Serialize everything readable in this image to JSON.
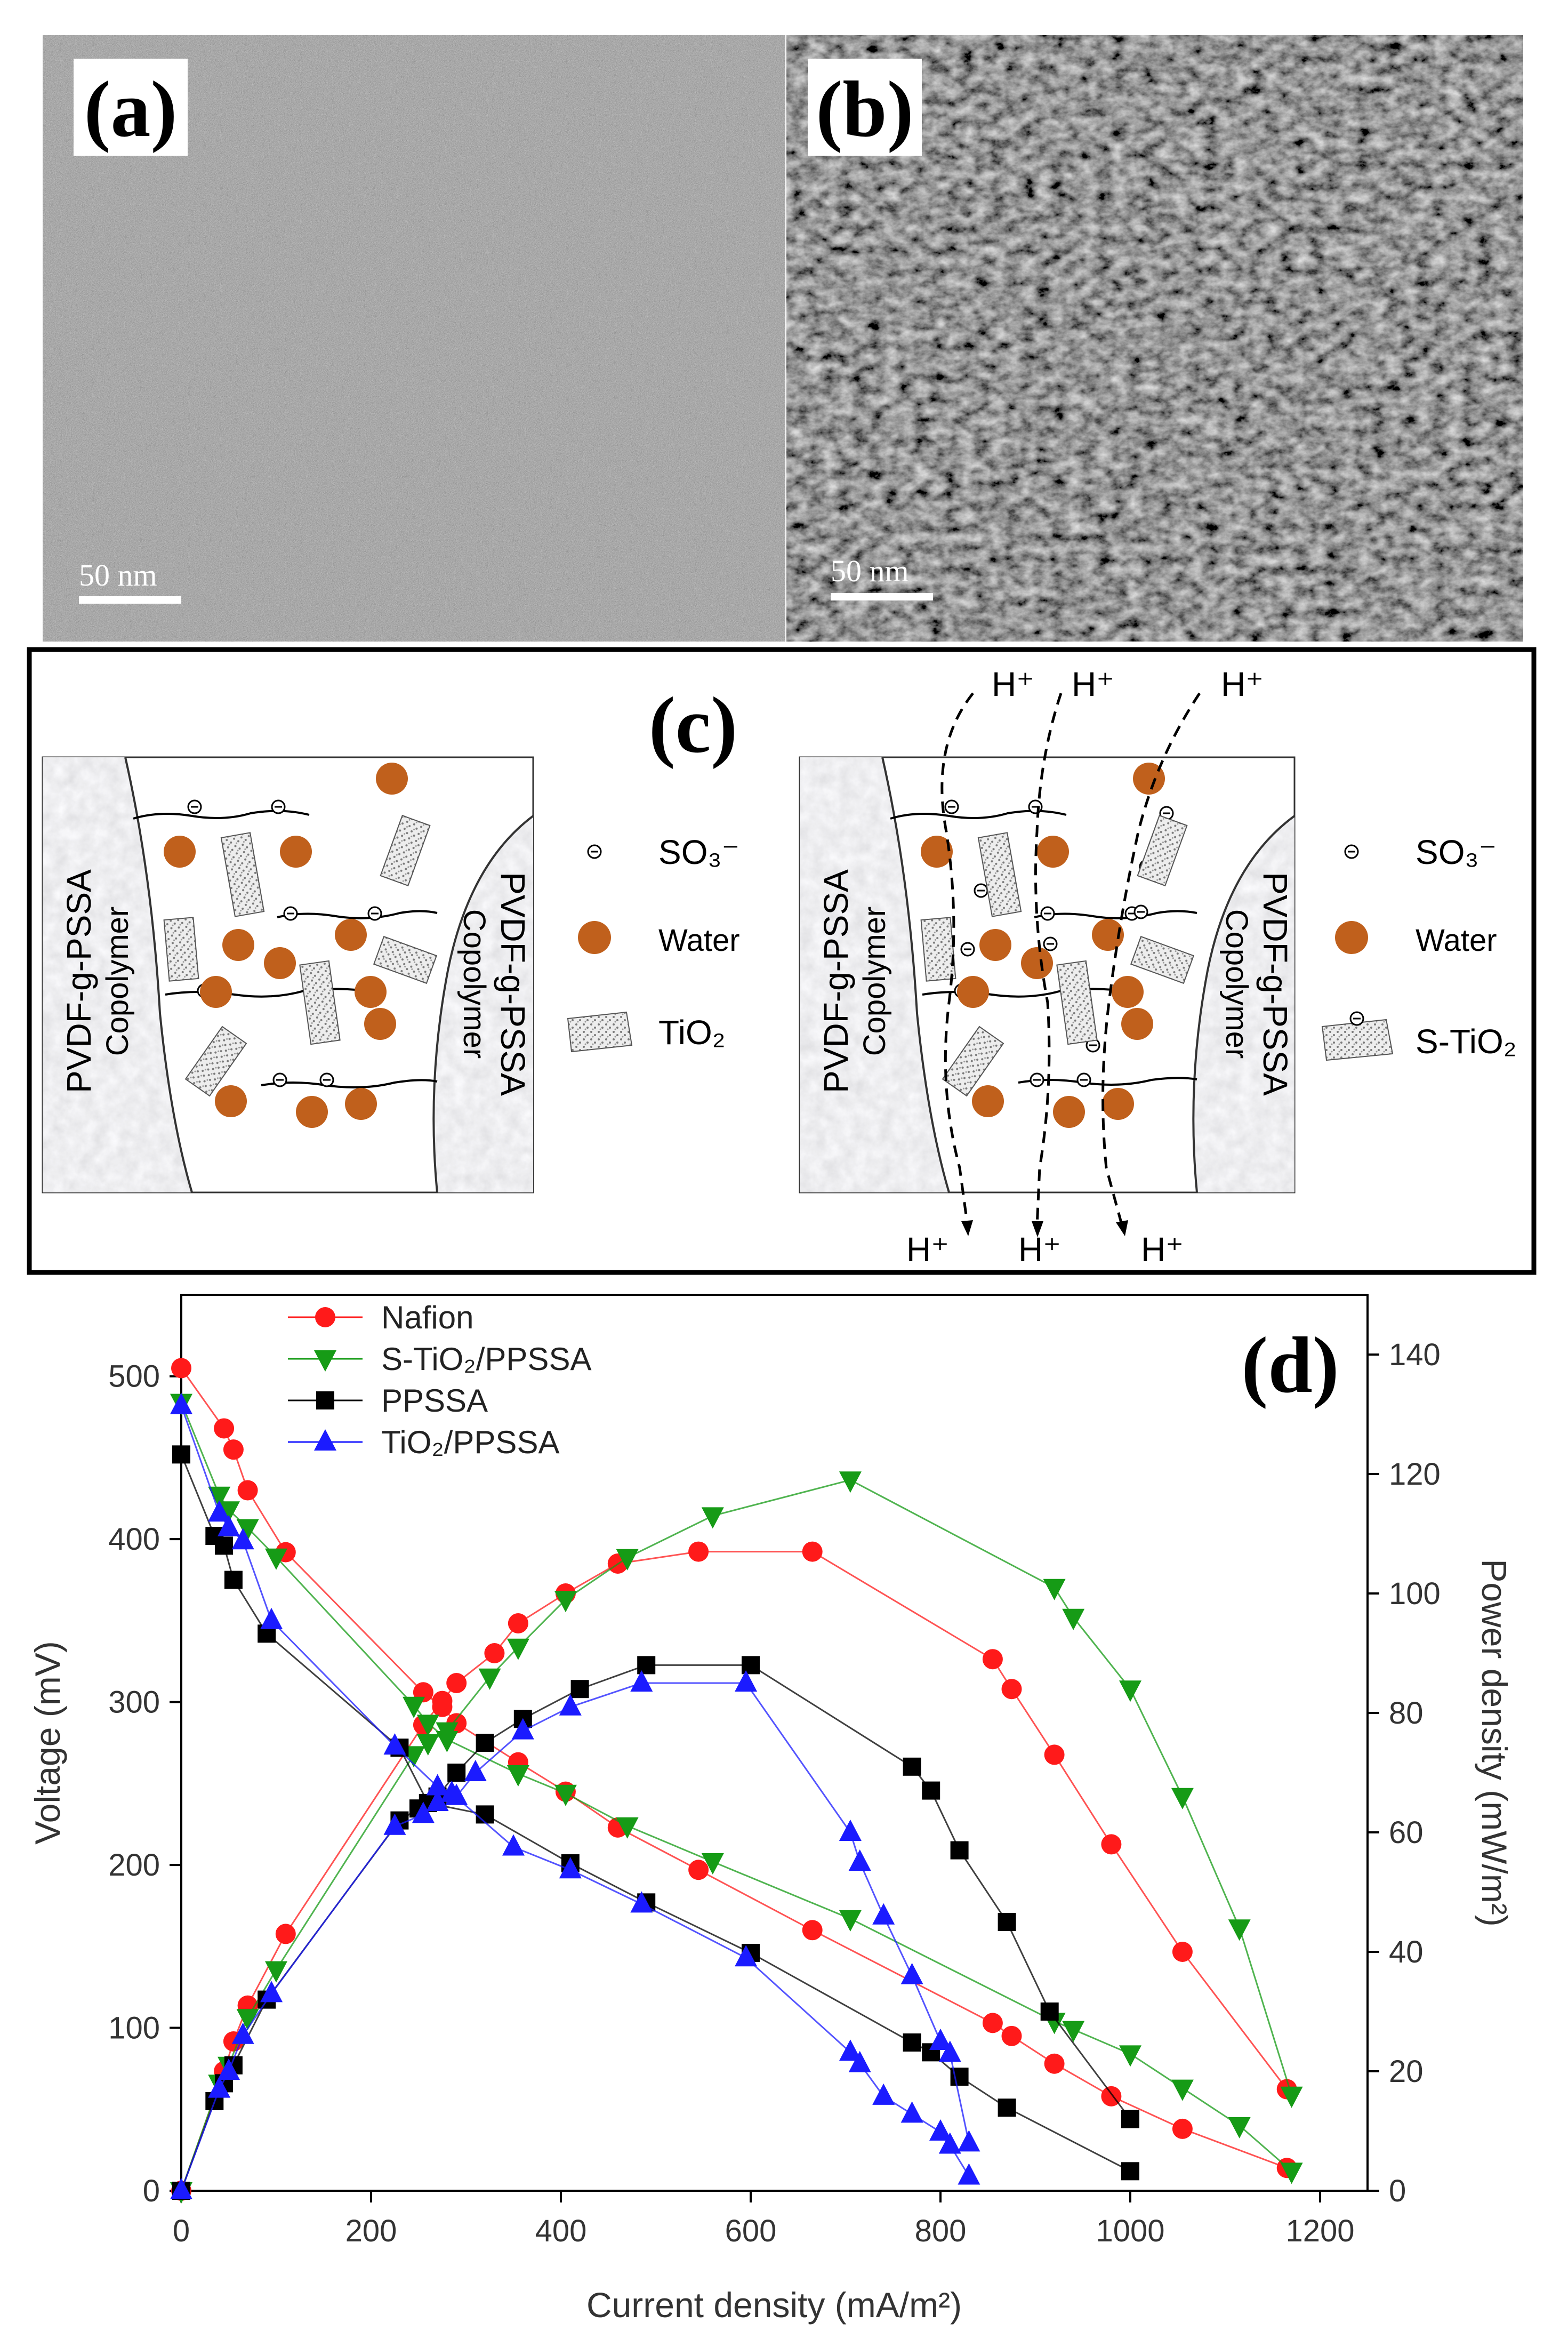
{
  "panels": {
    "a": {
      "label": "(a)",
      "scale_bar": "50 nm"
    },
    "b": {
      "label": "(b)",
      "scale_bar": "50 nm"
    },
    "c": {
      "label": "(c)",
      "copolymer_name": "PVDF-g-PSSA",
      "copolymer_word": "Copolymer",
      "left_legend": {
        "so3": "SO₃⁻",
        "water": "Water",
        "tio2": "TiO₂"
      },
      "right_legend": {
        "so3": "SO₃⁻",
        "water": "Water",
        "stio2": "S-TiO₂"
      },
      "proton": "H⁺"
    },
    "d": {
      "label": "(d)"
    }
  },
  "colors": {
    "nafion": "#ff1a1a",
    "stio2": "#169b16",
    "ppssa": "#000000",
    "tio2": "#1b1bff",
    "water": "#c0601c"
  },
  "chart_data": {
    "type": "line",
    "xlabel": "Current density (mA/m²)",
    "ylabel_left": "Voltage (mV)",
    "ylabel_right": "Power density (mW/m²)",
    "xlim": [
      0,
      1250
    ],
    "ylim_left": [
      0,
      550
    ],
    "ylim_right": [
      0,
      150
    ],
    "xticks": [
      0,
      200,
      400,
      600,
      800,
      1000,
      1200
    ],
    "yticks_left": [
      0,
      100,
      200,
      300,
      400,
      500
    ],
    "yticks_right": [
      0,
      20,
      40,
      60,
      80,
      100,
      120,
      140
    ],
    "legend": [
      "Nafion",
      "S-TiO₂/PPSSA",
      "PPSSA",
      "TiO₂/PPSSA"
    ],
    "series": [
      {
        "name": "Nafion",
        "axis": "voltage",
        "marker": "circle",
        "x": [
          0,
          45,
          55,
          70,
          110,
          255,
          275,
          290,
          355,
          405,
          460,
          545,
          665,
          855,
          875,
          920,
          980,
          1055,
          1165
        ],
        "y": [
          505,
          468,
          455,
          430,
          392,
          306,
          297,
          287,
          263,
          245,
          223,
          197,
          160,
          103,
          95,
          78,
          58,
          38,
          14
        ]
      },
      {
        "name": "Nafion",
        "axis": "power",
        "marker": "circle",
        "x": [
          0,
          45,
          55,
          70,
          110,
          255,
          275,
          290,
          330,
          355,
          405,
          460,
          545,
          665,
          855,
          875,
          920,
          980,
          1055,
          1165
        ],
        "y": [
          0,
          20,
          25,
          31,
          43,
          78,
          82,
          85,
          90,
          95,
          100,
          105,
          107,
          107,
          89,
          84,
          73,
          58,
          40,
          17
        ]
      },
      {
        "name": "S-TiO₂/PPSSA",
        "axis": "voltage",
        "marker": "triangle-down",
        "x": [
          0,
          40,
          50,
          70,
          100,
          245,
          260,
          280,
          355,
          405,
          470,
          560,
          705,
          920,
          940,
          1000,
          1055,
          1115,
          1170
        ],
        "y": [
          484,
          427,
          418,
          407,
          389,
          298,
          287,
          277,
          256,
          244,
          224,
          202,
          167,
          104,
          99,
          84,
          63,
          40,
          12
        ]
      },
      {
        "name": "S-TiO₂/PPSSA",
        "axis": "power",
        "marker": "triangle-down",
        "x": [
          0,
          40,
          50,
          70,
          100,
          245,
          260,
          280,
          325,
          355,
          405,
          470,
          560,
          705,
          920,
          940,
          1000,
          1055,
          1115,
          1170
        ],
        "y": [
          0,
          18,
          21,
          29,
          37,
          73,
          75,
          77,
          86,
          91,
          99,
          106,
          113,
          119,
          101,
          96,
          84,
          66,
          44,
          16
        ]
      },
      {
        "name": "PPSSA",
        "axis": "voltage",
        "marker": "square",
        "x": [
          0,
          35,
          45,
          55,
          90,
          230,
          260,
          320,
          410,
          490,
          600,
          770,
          790,
          820,
          870,
          1000
        ],
        "y": [
          452,
          402,
          396,
          375,
          342,
          272,
          238,
          231,
          201,
          177,
          146,
          91,
          85,
          70,
          51,
          12
        ]
      },
      {
        "name": "PPSSA",
        "axis": "power",
        "marker": "square",
        "x": [
          0,
          35,
          45,
          55,
          90,
          230,
          250,
          270,
          290,
          320,
          360,
          420,
          490,
          600,
          770,
          790,
          820,
          870,
          915,
          1000
        ],
        "y": [
          0,
          15,
          18,
          21,
          32,
          62,
          64,
          66,
          70,
          75,
          79,
          84,
          88,
          88,
          71,
          67,
          57,
          45,
          30,
          12
        ]
      },
      {
        "name": "TiO₂/PPSSA",
        "axis": "voltage",
        "marker": "triangle-up",
        "x": [
          0,
          40,
          50,
          65,
          95,
          225,
          270,
          285,
          350,
          410,
          485,
          595,
          705,
          715,
          740,
          770,
          800,
          810,
          830
        ],
        "y": [
          482,
          416,
          407,
          399,
          350,
          273,
          248,
          244,
          211,
          197,
          176,
          143,
          85,
          78,
          58,
          47,
          36,
          28,
          9
        ]
      },
      {
        "name": "TiO₂/PPSSA",
        "axis": "power",
        "marker": "triangle-up",
        "x": [
          0,
          40,
          50,
          65,
          95,
          225,
          255,
          270,
          290,
          310,
          360,
          410,
          485,
          595,
          705,
          715,
          740,
          770,
          800,
          810,
          830
        ],
        "y": [
          0,
          17,
          20,
          26,
          33,
          61,
          63,
          65,
          66,
          70,
          77,
          81,
          85,
          85,
          60,
          55,
          46,
          36,
          25,
          23,
          8
        ]
      }
    ]
  }
}
